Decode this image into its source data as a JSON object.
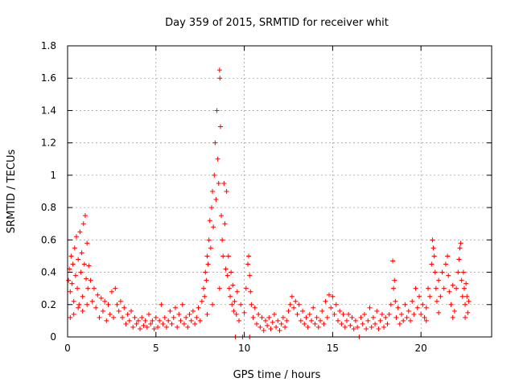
{
  "chart_data": {
    "type": "scatter",
    "title": "Day 359 of 2015, SRMTID for receiver whit",
    "xlabel": "GPS time / hours",
    "ylabel": "SRMTID / TECUs",
    "xlim": [
      0,
      24
    ],
    "ylim": [
      0,
      1.8
    ],
    "xticks": [
      0,
      5,
      10,
      15,
      20
    ],
    "xtick_labels": [
      "0",
      "5",
      "10",
      "15",
      "20"
    ],
    "yticks": [
      0,
      0.2,
      0.4,
      0.6,
      0.8,
      1,
      1.2,
      1.4,
      1.6,
      1.8
    ],
    "ytick_labels": [
      "0",
      "0.2",
      "0.4",
      "0.6",
      "0.8",
      "1",
      "1.2",
      "1.4",
      "1.6",
      "1.8"
    ],
    "grid": true,
    "marker": "+",
    "color": "#ff0000",
    "series": [
      {
        "name": "SRMTID",
        "points": [
          [
            0.05,
            0.35
          ],
          [
            0.1,
            0.42
          ],
          [
            0.15,
            0.28
          ],
          [
            0.2,
            0.5
          ],
          [
            0.25,
            0.33
          ],
          [
            0.3,
            0.45
          ],
          [
            0.35,
            0.22
          ],
          [
            0.4,
            0.55
          ],
          [
            0.45,
            0.38
          ],
          [
            0.5,
            0.62
          ],
          [
            0.55,
            0.3
          ],
          [
            0.6,
            0.48
          ],
          [
            0.65,
            0.2
          ],
          [
            0.7,
            0.65
          ],
          [
            0.75,
            0.4
          ],
          [
            0.8,
            0.52
          ],
          [
            0.85,
            0.25
          ],
          [
            0.9,
            0.7
          ],
          [
            0.95,
            0.45
          ],
          [
            1.0,
            0.75
          ],
          [
            1.05,
            0.36
          ],
          [
            1.1,
            0.58
          ],
          [
            1.15,
            0.3
          ],
          [
            1.2,
            0.44
          ],
          [
            0.15,
            0.12
          ],
          [
            0.35,
            0.14
          ],
          [
            0.6,
            0.18
          ],
          [
            0.85,
            0.16
          ],
          [
            1.1,
            0.2
          ],
          [
            1.3,
            0.35
          ],
          [
            1.4,
            0.22
          ],
          [
            1.5,
            0.3
          ],
          [
            1.6,
            0.18
          ],
          [
            1.7,
            0.26
          ],
          [
            1.8,
            0.12
          ],
          [
            1.9,
            0.24
          ],
          [
            2.0,
            0.16
          ],
          [
            2.1,
            0.22
          ],
          [
            2.2,
            0.1
          ],
          [
            2.3,
            0.2
          ],
          [
            2.4,
            0.14
          ],
          [
            2.5,
            0.28
          ],
          [
            2.6,
            0.12
          ],
          [
            2.7,
            0.3
          ],
          [
            2.8,
            0.2
          ],
          [
            2.9,
            0.16
          ],
          [
            3.0,
            0.22
          ],
          [
            3.1,
            0.12
          ],
          [
            3.2,
            0.18
          ],
          [
            3.3,
            0.08
          ],
          [
            3.4,
            0.14
          ],
          [
            3.5,
            0.1
          ],
          [
            3.6,
            0.16
          ],
          [
            3.7,
            0.06
          ],
          [
            3.8,
            0.12
          ],
          [
            3.9,
            0.08
          ],
          [
            4.0,
            0.1
          ],
          [
            4.1,
            0.05
          ],
          [
            4.2,
            0.12
          ],
          [
            4.3,
            0.07
          ],
          [
            4.4,
            0.1
          ],
          [
            4.5,
            0.06
          ],
          [
            4.6,
            0.14
          ],
          [
            4.7,
            0.08
          ],
          [
            4.8,
            0.1
          ],
          [
            4.9,
            0.05
          ],
          [
            5.0,
            0.12
          ],
          [
            5.1,
            0.06
          ],
          [
            5.2,
            0.1
          ],
          [
            5.3,
            0.2
          ],
          [
            5.4,
            0.08
          ],
          [
            5.5,
            0.12
          ],
          [
            5.6,
            0.06
          ],
          [
            5.7,
            0.1
          ],
          [
            5.8,
            0.16
          ],
          [
            5.9,
            0.08
          ],
          [
            6.0,
            0.12
          ],
          [
            6.1,
            0.18
          ],
          [
            6.2,
            0.06
          ],
          [
            6.3,
            0.14
          ],
          [
            6.4,
            0.1
          ],
          [
            6.5,
            0.2
          ],
          [
            6.6,
            0.08
          ],
          [
            6.7,
            0.12
          ],
          [
            6.8,
            0.06
          ],
          [
            6.9,
            0.14
          ],
          [
            7.0,
            0.1
          ],
          [
            7.1,
            0.16
          ],
          [
            7.2,
            0.08
          ],
          [
            7.3,
            0.12
          ],
          [
            7.4,
            0.18
          ],
          [
            7.5,
            0.1
          ],
          [
            7.6,
            0.22
          ],
          [
            7.7,
            0.3
          ],
          [
            7.75,
            0.25
          ],
          [
            7.8,
            0.4
          ],
          [
            7.85,
            0.35
          ],
          [
            7.9,
            0.5
          ],
          [
            7.95,
            0.45
          ],
          [
            8.0,
            0.6
          ],
          [
            8.05,
            0.72
          ],
          [
            8.1,
            0.55
          ],
          [
            8.15,
            0.8
          ],
          [
            8.2,
            0.9
          ],
          [
            8.25,
            0.68
          ],
          [
            8.3,
            1.0
          ],
          [
            8.35,
            1.2
          ],
          [
            8.4,
            0.85
          ],
          [
            8.45,
            1.4
          ],
          [
            8.5,
            1.1
          ],
          [
            8.55,
            0.95
          ],
          [
            8.6,
            1.65
          ],
          [
            8.62,
            1.6
          ],
          [
            8.65,
            1.3
          ],
          [
            8.7,
            0.75
          ],
          [
            8.75,
            0.6
          ],
          [
            8.8,
            0.5
          ],
          [
            8.85,
            0.95
          ],
          [
            8.9,
            0.7
          ],
          [
            8.95,
            0.42
          ],
          [
            9.0,
            0.9
          ],
          [
            9.05,
            0.38
          ],
          [
            9.1,
            0.5
          ],
          [
            9.15,
            0.3
          ],
          [
            9.2,
            0.25
          ],
          [
            9.25,
            0.4
          ],
          [
            9.3,
            0.2
          ],
          [
            9.35,
            0.32
          ],
          [
            9.4,
            0.16
          ],
          [
            9.45,
            0.22
          ],
          [
            9.5,
            0.0
          ],
          [
            9.55,
            0.14
          ],
          [
            9.6,
            0.28
          ],
          [
            9.7,
            0.1
          ],
          [
            9.8,
            0.2
          ],
          [
            9.9,
            0.0
          ],
          [
            10.0,
            0.15
          ],
          [
            10.1,
            0.3
          ],
          [
            10.2,
            0.45
          ],
          [
            10.25,
            0.5
          ],
          [
            10.3,
            0.38
          ],
          [
            10.35,
            0.28
          ],
          [
            10.4,
            0.2
          ],
          [
            10.5,
            0.12
          ],
          [
            7.9,
            0.14
          ],
          [
            8.2,
            0.2
          ],
          [
            8.6,
            0.3
          ],
          [
            10.3,
            0.0
          ],
          [
            10.6,
            0.18
          ],
          [
            10.7,
            0.08
          ],
          [
            10.8,
            0.14
          ],
          [
            10.9,
            0.06
          ],
          [
            11.0,
            0.12
          ],
          [
            11.1,
            0.04
          ],
          [
            11.2,
            0.1
          ],
          [
            11.3,
            0.07
          ],
          [
            11.4,
            0.12
          ],
          [
            11.5,
            0.05
          ],
          [
            11.6,
            0.09
          ],
          [
            11.7,
            0.14
          ],
          [
            11.8,
            0.06
          ],
          [
            11.9,
            0.1
          ],
          [
            12.0,
            0.04
          ],
          [
            12.1,
            0.08
          ],
          [
            12.2,
            0.12
          ],
          [
            12.3,
            0.06
          ],
          [
            12.4,
            0.1
          ],
          [
            12.5,
            0.16
          ],
          [
            12.6,
            0.2
          ],
          [
            12.7,
            0.25
          ],
          [
            12.8,
            0.18
          ],
          [
            12.9,
            0.22
          ],
          [
            13.0,
            0.14
          ],
          [
            13.1,
            0.2
          ],
          [
            13.2,
            0.1
          ],
          [
            13.3,
            0.16
          ],
          [
            13.4,
            0.08
          ],
          [
            13.5,
            0.12
          ],
          [
            13.6,
            0.06
          ],
          [
            13.7,
            0.14
          ],
          [
            13.8,
            0.1
          ],
          [
            13.9,
            0.18
          ],
          [
            14.0,
            0.08
          ],
          [
            14.1,
            0.12
          ],
          [
            14.2,
            0.06
          ],
          [
            14.3,
            0.1
          ],
          [
            14.4,
            0.16
          ],
          [
            14.5,
            0.08
          ],
          [
            14.6,
            0.22
          ],
          [
            14.7,
            0.12
          ],
          [
            14.8,
            0.26
          ],
          [
            14.9,
            0.18
          ],
          [
            15.0,
            0.25
          ],
          [
            15.1,
            0.14
          ],
          [
            15.2,
            0.2
          ],
          [
            15.3,
            0.1
          ],
          [
            15.4,
            0.16
          ],
          [
            15.5,
            0.08
          ],
          [
            15.6,
            0.14
          ],
          [
            15.7,
            0.06
          ],
          [
            15.8,
            0.1
          ],
          [
            15.9,
            0.14
          ],
          [
            16.0,
            0.07
          ],
          [
            16.1,
            0.12
          ],
          [
            16.2,
            0.05
          ],
          [
            16.3,
            0.1
          ],
          [
            16.4,
            0.06
          ],
          [
            16.5,
            0.0
          ],
          [
            16.6,
            0.12
          ],
          [
            16.7,
            0.08
          ],
          [
            16.8,
            0.14
          ],
          [
            16.9,
            0.05
          ],
          [
            17.0,
            0.1
          ],
          [
            17.1,
            0.18
          ],
          [
            17.2,
            0.06
          ],
          [
            17.3,
            0.12
          ],
          [
            17.4,
            0.08
          ],
          [
            17.5,
            0.16
          ],
          [
            17.6,
            0.05
          ],
          [
            17.7,
            0.1
          ],
          [
            17.8,
            0.14
          ],
          [
            17.9,
            0.06
          ],
          [
            18.0,
            0.12
          ],
          [
            18.1,
            0.08
          ],
          [
            18.2,
            0.14
          ],
          [
            18.3,
            0.2
          ],
          [
            18.4,
            0.47
          ],
          [
            18.45,
            0.3
          ],
          [
            18.5,
            0.35
          ],
          [
            18.55,
            0.22
          ],
          [
            18.6,
            0.12
          ],
          [
            18.7,
            0.18
          ],
          [
            18.8,
            0.08
          ],
          [
            18.9,
            0.14
          ],
          [
            19.0,
            0.1
          ],
          [
            19.1,
            0.2
          ],
          [
            19.2,
            0.12
          ],
          [
            19.3,
            0.16
          ],
          [
            19.4,
            0.1
          ],
          [
            19.5,
            0.22
          ],
          [
            19.6,
            0.14
          ],
          [
            19.7,
            0.3
          ],
          [
            19.8,
            0.18
          ],
          [
            19.9,
            0.25
          ],
          [
            20.0,
            0.14
          ],
          [
            20.1,
            0.2
          ],
          [
            20.2,
            0.12
          ],
          [
            20.3,
            0.18
          ],
          [
            20.4,
            0.3
          ],
          [
            20.5,
            0.25
          ],
          [
            20.6,
            0.45
          ],
          [
            20.65,
            0.6
          ],
          [
            20.7,
            0.55
          ],
          [
            20.75,
            0.5
          ],
          [
            20.8,
            0.4
          ],
          [
            20.85,
            0.3
          ],
          [
            20.9,
            0.22
          ],
          [
            21.0,
            0.35
          ],
          [
            21.1,
            0.25
          ],
          [
            21.2,
            0.4
          ],
          [
            21.3,
            0.3
          ],
          [
            21.4,
            0.45
          ],
          [
            21.5,
            0.5
          ],
          [
            21.55,
            0.38
          ],
          [
            21.6,
            0.28
          ],
          [
            21.7,
            0.2
          ],
          [
            21.8,
            0.32
          ],
          [
            21.9,
            0.16
          ],
          [
            22.0,
            0.3
          ],
          [
            22.1,
            0.4
          ],
          [
            22.15,
            0.48
          ],
          [
            22.2,
            0.55
          ],
          [
            22.25,
            0.58
          ],
          [
            22.3,
            0.35
          ],
          [
            22.35,
            0.25
          ],
          [
            22.4,
            0.4
          ],
          [
            22.45,
            0.3
          ],
          [
            22.5,
            0.2
          ],
          [
            22.55,
            0.33
          ],
          [
            22.6,
            0.25
          ],
          [
            22.65,
            0.15
          ],
          [
            22.7,
            0.22
          ],
          [
            20.3,
            0.1
          ],
          [
            21.0,
            0.15
          ],
          [
            21.8,
            0.12
          ],
          [
            22.5,
            0.12
          ]
        ]
      }
    ]
  }
}
